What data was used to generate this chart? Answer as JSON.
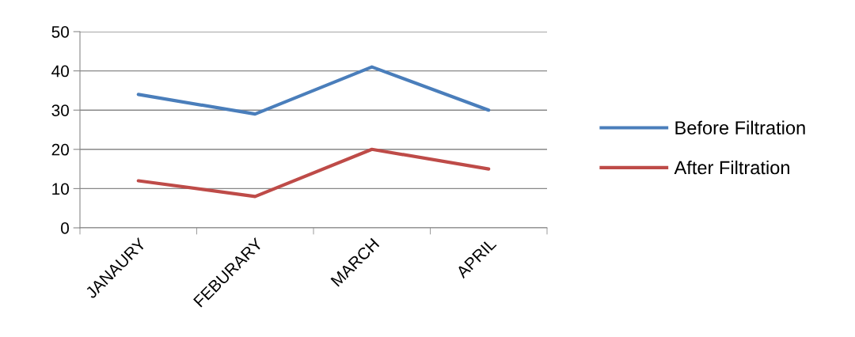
{
  "chart_data": {
    "type": "line",
    "categories": [
      "JANAURY",
      "FEBURARY",
      "MARCH",
      "APRIL"
    ],
    "series": [
      {
        "name": "Before Filtration",
        "color": "#4a7ebb",
        "values": [
          34,
          29,
          41,
          30
        ]
      },
      {
        "name": "After Filtration",
        "color": "#be4b48",
        "values": [
          12,
          8,
          20,
          15
        ]
      }
    ],
    "ylim": [
      0,
      50
    ],
    "yticks": [
      0,
      10,
      20,
      30,
      40,
      50
    ],
    "grid": "y",
    "legend": "right",
    "marker": "none",
    "line_style": "solid"
  }
}
